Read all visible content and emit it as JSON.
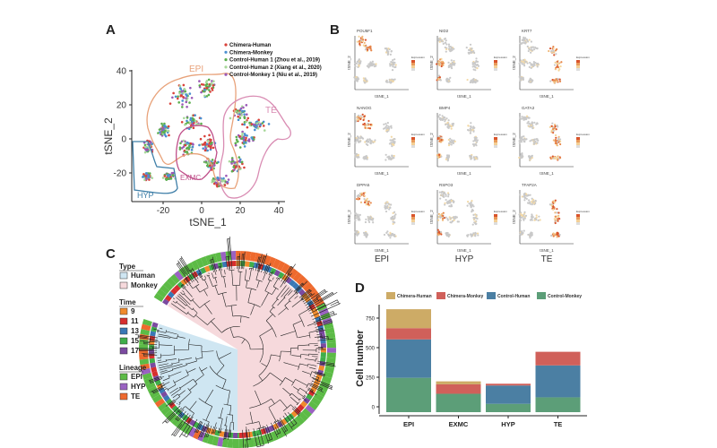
{
  "panels": {
    "a": "A",
    "b": "B",
    "c": "C",
    "d": "D"
  },
  "panel_a": {
    "chart_data": {
      "type": "scatter",
      "xlabel": "tSNE_1",
      "ylabel": "tSNE_2",
      "xticks": [
        "-20",
        "0",
        "20",
        "40"
      ],
      "yticks": [
        "40",
        "20",
        "0",
        "-20"
      ],
      "xlim": [
        -37,
        42
      ],
      "ylim": [
        -38,
        42
      ],
      "legend": [
        {
          "label": "Chimera-Human",
          "color": "#d9413a"
        },
        {
          "label": "Chimera-Monkey",
          "color": "#4a8fd0"
        },
        {
          "label": "Control-Human 1 (Zhou et al., 2019)",
          "color": "#5cae4e"
        },
        {
          "label": "Control-Human 2 (Xiang et al., 2020)",
          "color": "#a8d89a"
        },
        {
          "label": "Control-Monkey 1 (Niu et al., 2019)",
          "color": "#9b59b6"
        }
      ],
      "legend_position": "top-right",
      "annotations": [
        {
          "label": "EPI",
          "color": "#e8a27a"
        },
        {
          "label": "TE",
          "color": "#d98cb3"
        },
        {
          "label": "EXMC",
          "color": "#c0508a"
        },
        {
          "label": "HYP",
          "color": "#3f7fa8"
        }
      ]
    }
  },
  "panel_b": {
    "genes": [
      "POU5F1",
      "NID2",
      "KRT7",
      "NANOG",
      "BMP4",
      "GATA3",
      "DPPA5",
      "RSPO3",
      "TFAP2A"
    ],
    "xlabel": "tSNE_1",
    "ylabel": "tSNE_2",
    "legend_title": "Expression",
    "columns": [
      "EPI",
      "HYP",
      "TE"
    ]
  },
  "panel_c": {
    "legend": [
      {
        "title": "Type",
        "items": [
          {
            "label": "Human",
            "color": "#cfe6f2"
          },
          {
            "label": "Monkey",
            "color": "#f6d9dc"
          }
        ]
      },
      {
        "title": "Time",
        "items": [
          {
            "label": "9",
            "color": "#f08a2c"
          },
          {
            "label": "11",
            "color": "#d62e2e"
          },
          {
            "label": "13",
            "color": "#3a78b5"
          },
          {
            "label": "15",
            "color": "#3fae4a"
          },
          {
            "label": "17",
            "color": "#7b4aa0"
          }
        ]
      },
      {
        "title": "Lineage",
        "items": [
          {
            "label": "EPI",
            "color": "#5cbb46"
          },
          {
            "label": "HYP",
            "color": "#9a62c2"
          },
          {
            "label": "TE",
            "color": "#ee6a2e"
          }
        ]
      }
    ]
  },
  "panel_d": {
    "chart_data": {
      "type": "bar",
      "stacked": true,
      "categories": [
        "EPI",
        "EXMC",
        "HYP",
        "TE"
      ],
      "ylabel": "Cell number",
      "yticks": [
        "0",
        "250",
        "500",
        "750"
      ],
      "ylim": [
        0,
        850
      ],
      "legend_position": "top",
      "series": [
        {
          "name": "Control-Monkey",
          "color": "#5c9e78",
          "values": [
            245,
            110,
            25,
            80
          ]
        },
        {
          "name": "Control-Human",
          "color": "#4b7fa3",
          "values": [
            325,
            0,
            155,
            270
          ]
        },
        {
          "name": "Chimera-Monkey",
          "color": "#d0605a",
          "values": [
            95,
            80,
            15,
            115
          ]
        },
        {
          "name": "Chimera-Human",
          "color": "#cdab66",
          "values": [
            160,
            25,
            0,
            0
          ]
        }
      ],
      "legend_order": [
        "Chimera-Human",
        "Chimera-Monkey",
        "Control-Human",
        "Control-Monkey"
      ]
    }
  }
}
